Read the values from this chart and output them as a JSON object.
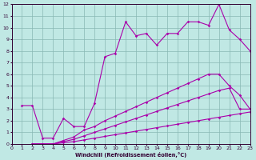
{
  "xlabel": "Windchill (Refroidissement éolien,°C)",
  "xlim": [
    0,
    23
  ],
  "ylim": [
    0,
    12
  ],
  "xticks": [
    0,
    1,
    2,
    3,
    4,
    5,
    6,
    7,
    8,
    9,
    10,
    11,
    12,
    13,
    14,
    15,
    16,
    17,
    18,
    19,
    20,
    21,
    22,
    23
  ],
  "yticks": [
    0,
    1,
    2,
    3,
    4,
    5,
    6,
    7,
    8,
    9,
    10,
    11,
    12
  ],
  "bg_color": "#c0e8e4",
  "grid_color": "#88b8b4",
  "line_color": "#aa00aa",
  "line1_x": [
    1,
    2,
    3,
    4,
    5,
    6,
    7,
    8,
    9,
    10,
    11,
    12,
    13,
    14,
    15,
    16,
    17,
    18,
    19,
    20,
    21,
    22,
    23
  ],
  "line1_y": [
    3.3,
    3.3,
    0.5,
    0.5,
    2.2,
    1.5,
    1.5,
    3.5,
    7.5,
    7.8,
    10.5,
    9.3,
    9.5,
    8.5,
    9.5,
    9.5,
    10.5,
    10.5,
    10.2,
    12.0,
    9.8,
    9.0,
    8.0
  ],
  "line2_x": [
    2,
    3,
    4,
    5,
    6,
    7,
    8,
    9,
    10,
    11,
    12,
    13,
    14,
    15,
    16,
    17,
    18,
    19,
    20,
    21,
    22,
    23
  ],
  "line2_y": [
    0.0,
    0.0,
    0.0,
    0.3,
    0.6,
    1.2,
    1.5,
    2.0,
    2.4,
    2.8,
    3.2,
    3.6,
    4.0,
    4.4,
    4.8,
    5.2,
    5.6,
    6.0,
    6.0,
    5.0,
    4.2,
    3.0
  ],
  "line3_x": [
    2,
    3,
    4,
    5,
    6,
    7,
    8,
    9,
    10,
    11,
    12,
    13,
    14,
    15,
    16,
    17,
    18,
    19,
    20,
    21,
    22,
    23
  ],
  "line3_y": [
    0.0,
    0.0,
    0.0,
    0.2,
    0.4,
    0.7,
    1.0,
    1.3,
    1.6,
    1.9,
    2.2,
    2.5,
    2.8,
    3.1,
    3.4,
    3.7,
    4.0,
    4.3,
    4.6,
    4.8,
    3.0,
    3.0
  ],
  "line4_x": [
    2,
    3,
    4,
    5,
    6,
    7,
    8,
    9,
    10,
    11,
    12,
    13,
    14,
    15,
    16,
    17,
    18,
    19,
    20,
    21,
    22,
    23
  ],
  "line4_y": [
    0.0,
    0.0,
    0.0,
    0.1,
    0.2,
    0.35,
    0.5,
    0.65,
    0.8,
    0.95,
    1.1,
    1.25,
    1.4,
    1.55,
    1.7,
    1.85,
    2.0,
    2.15,
    2.3,
    2.45,
    2.6,
    2.75
  ]
}
